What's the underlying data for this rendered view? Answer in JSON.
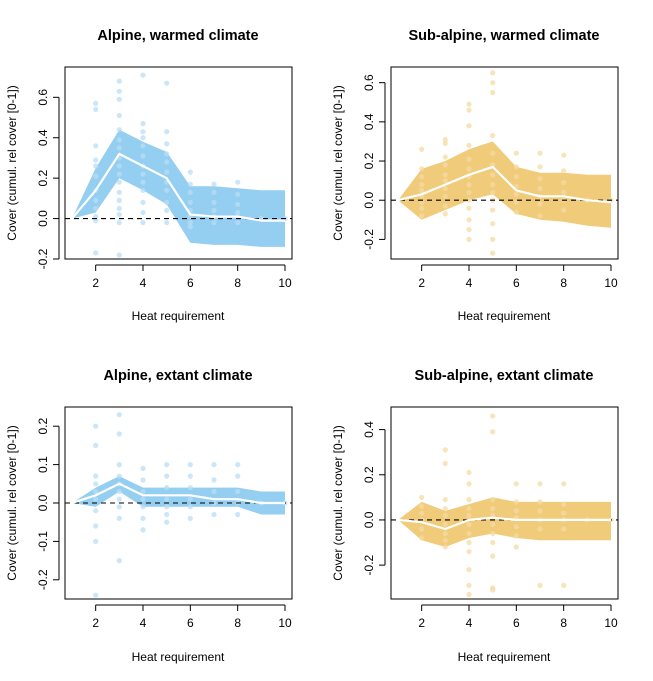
{
  "chart_data": [
    {
      "type": "line",
      "title": "Alpine, warmed climate",
      "xlabel": "Heat requirement",
      "ylabel": "Cover (cumul. rel cover [0-1])",
      "xlim": [
        1,
        10
      ],
      "ylim": [
        -0.2,
        0.75
      ],
      "xticks": [
        2,
        4,
        6,
        8,
        10
      ],
      "yticks": [
        -0.2,
        0.0,
        0.2,
        0.4,
        0.6
      ],
      "band_color": "#8ecbef",
      "point_color": "#b9def5",
      "line_color": "#ffffff",
      "reference_line": 0,
      "series": [
        {
          "x": [
            1,
            2,
            3,
            4,
            5,
            6,
            7,
            8,
            9,
            10
          ],
          "mean": [
            0.0,
            0.14,
            0.32,
            0.26,
            0.2,
            0.02,
            0.01,
            0.01,
            -0.01,
            -0.01
          ],
          "lower": [
            0.0,
            0.03,
            0.2,
            0.14,
            0.07,
            -0.12,
            -0.13,
            -0.13,
            -0.14,
            -0.14
          ],
          "upper": [
            0.0,
            0.25,
            0.44,
            0.38,
            0.33,
            0.16,
            0.16,
            0.15,
            0.14,
            0.14
          ]
        }
      ],
      "points": [
        [
          2,
          0.57
        ],
        [
          2,
          0.54
        ],
        [
          2,
          0.36
        ],
        [
          2,
          0.29
        ],
        [
          2,
          0.26
        ],
        [
          2,
          0.21
        ],
        [
          2,
          0.14
        ],
        [
          2,
          0.09
        ],
        [
          2,
          0.05
        ],
        [
          2,
          0.01
        ],
        [
          2,
          -0.01
        ],
        [
          2,
          -0.17
        ],
        [
          3,
          0.68
        ],
        [
          3,
          0.63
        ],
        [
          3,
          0.59
        ],
        [
          3,
          0.51
        ],
        [
          3,
          0.44
        ],
        [
          3,
          0.39
        ],
        [
          3,
          0.35
        ],
        [
          3,
          0.3
        ],
        [
          3,
          0.26
        ],
        [
          3,
          0.22
        ],
        [
          3,
          0.18
        ],
        [
          3,
          0.13
        ],
        [
          3,
          0.09
        ],
        [
          3,
          0.05
        ],
        [
          3,
          0.02
        ],
        [
          3,
          -0.02
        ],
        [
          3,
          -0.18
        ],
        [
          4,
          0.71
        ],
        [
          4,
          0.47
        ],
        [
          4,
          0.43
        ],
        [
          4,
          0.4
        ],
        [
          4,
          0.36
        ],
        [
          4,
          0.31
        ],
        [
          4,
          0.26
        ],
        [
          4,
          0.22
        ],
        [
          4,
          0.18
        ],
        [
          4,
          0.14
        ],
        [
          4,
          0.08
        ],
        [
          4,
          0.03
        ],
        [
          4,
          -0.02
        ],
        [
          5,
          0.67
        ],
        [
          5,
          0.43
        ],
        [
          5,
          0.37
        ],
        [
          5,
          0.32
        ],
        [
          5,
          0.28
        ],
        [
          5,
          0.23
        ],
        [
          5,
          0.18
        ],
        [
          5,
          0.14
        ],
        [
          5,
          0.08
        ],
        [
          5,
          0.04
        ],
        [
          5,
          -0.02
        ],
        [
          6,
          0.23
        ],
        [
          6,
          0.17
        ],
        [
          6,
          0.13
        ],
        [
          6,
          0.08
        ],
        [
          6,
          0.04
        ],
        [
          6,
          0.01
        ],
        [
          6,
          -0.02
        ],
        [
          6,
          -0.04
        ],
        [
          7,
          0.17
        ],
        [
          7,
          0.13
        ],
        [
          7,
          0.08
        ],
        [
          7,
          0.04
        ],
        [
          7,
          0.01
        ],
        [
          7,
          -0.02
        ],
        [
          8,
          0.18
        ],
        [
          8,
          0.12
        ],
        [
          8,
          0.07
        ],
        [
          8,
          0.03
        ],
        [
          8,
          0.01
        ],
        [
          8,
          -0.02
        ],
        [
          9,
          0.0
        ],
        [
          10,
          0.0
        ]
      ]
    },
    {
      "type": "line",
      "title": "Sub-alpine, warmed climate",
      "xlabel": "Heat requirement",
      "ylabel": "Cover (cumul. rel cover [0-1])",
      "xlim": [
        1,
        10
      ],
      "ylim": [
        -0.3,
        0.68
      ],
      "xticks": [
        2,
        4,
        6,
        8,
        10
      ],
      "yticks": [
        -0.2,
        0.0,
        0.2,
        0.4,
        0.6
      ],
      "band_color": "#efc873",
      "point_color": "#f5dba3",
      "line_color": "#ffffff",
      "reference_line": 0,
      "series": [
        {
          "x": [
            1,
            2,
            3,
            4,
            5,
            6,
            7,
            8,
            9,
            10
          ],
          "mean": [
            0.0,
            0.03,
            0.08,
            0.13,
            0.17,
            0.05,
            0.02,
            0.02,
            0.0,
            -0.01
          ],
          "lower": [
            0.0,
            -0.1,
            -0.05,
            0.0,
            0.03,
            -0.07,
            -0.1,
            -0.11,
            -0.13,
            -0.14
          ],
          "upper": [
            0.0,
            0.16,
            0.2,
            0.26,
            0.3,
            0.17,
            0.14,
            0.14,
            0.13,
            0.13
          ]
        }
      ],
      "points": [
        [
          2,
          0.26
        ],
        [
          2,
          0.16
        ],
        [
          2,
          0.12
        ],
        [
          2,
          0.08
        ],
        [
          2,
          0.05
        ],
        [
          2,
          0.02
        ],
        [
          2,
          -0.01
        ],
        [
          2,
          -0.04
        ],
        [
          2,
          -0.08
        ],
        [
          3,
          0.31
        ],
        [
          3,
          0.29
        ],
        [
          3,
          0.22
        ],
        [
          3,
          0.18
        ],
        [
          3,
          0.13
        ],
        [
          3,
          0.1
        ],
        [
          3,
          0.06
        ],
        [
          3,
          0.02
        ],
        [
          3,
          -0.03
        ],
        [
          3,
          -0.07
        ],
        [
          4,
          0.49
        ],
        [
          4,
          0.46
        ],
        [
          4,
          0.38
        ],
        [
          4,
          0.28
        ],
        [
          4,
          0.21
        ],
        [
          4,
          0.16
        ],
        [
          4,
          0.12
        ],
        [
          4,
          0.08
        ],
        [
          4,
          0.04
        ],
        [
          4,
          0.0
        ],
        [
          4,
          -0.04
        ],
        [
          4,
          -0.1
        ],
        [
          4,
          -0.15
        ],
        [
          4,
          -0.2
        ],
        [
          5,
          0.65
        ],
        [
          5,
          0.6
        ],
        [
          5,
          0.55
        ],
        [
          5,
          0.33
        ],
        [
          5,
          0.24
        ],
        [
          5,
          0.18
        ],
        [
          5,
          0.13
        ],
        [
          5,
          0.08
        ],
        [
          5,
          0.04
        ],
        [
          5,
          0.0
        ],
        [
          5,
          -0.05
        ],
        [
          5,
          -0.12
        ],
        [
          5,
          -0.2
        ],
        [
          5,
          -0.27
        ],
        [
          6,
          0.24
        ],
        [
          6,
          0.17
        ],
        [
          6,
          0.12
        ],
        [
          6,
          0.07
        ],
        [
          6,
          0.03
        ],
        [
          6,
          -0.01
        ],
        [
          6,
          -0.06
        ],
        [
          7,
          0.24
        ],
        [
          7,
          0.17
        ],
        [
          7,
          0.11
        ],
        [
          7,
          0.06
        ],
        [
          7,
          0.02
        ],
        [
          7,
          -0.02
        ],
        [
          7,
          -0.08
        ],
        [
          8,
          0.23
        ],
        [
          8,
          0.15
        ],
        [
          8,
          0.09
        ],
        [
          8,
          0.04
        ],
        [
          8,
          0.0
        ],
        [
          8,
          -0.05
        ],
        [
          9,
          0.0
        ],
        [
          10,
          0.0
        ]
      ]
    },
    {
      "type": "line",
      "title": "Alpine, extant climate",
      "xlabel": "Heat requirement",
      "ylabel": "Cover (cumul. rel cover [0-1])",
      "xlim": [
        1,
        10
      ],
      "ylim": [
        -0.25,
        0.25
      ],
      "xticks": [
        2,
        4,
        6,
        8,
        10
      ],
      "yticks": [
        -0.2,
        -0.1,
        0.0,
        0.1,
        0.2
      ],
      "band_color": "#8ecbef",
      "point_color": "#b9def5",
      "line_color": "#ffffff",
      "reference_line": 0,
      "series": [
        {
          "x": [
            1,
            2,
            3,
            4,
            5,
            6,
            7,
            8,
            9,
            10
          ],
          "mean": [
            0.0,
            0.02,
            0.05,
            0.02,
            0.02,
            0.02,
            0.01,
            0.01,
            0.0,
            0.0
          ],
          "lower": [
            0.0,
            -0.01,
            0.03,
            -0.01,
            -0.01,
            -0.01,
            -0.01,
            -0.01,
            -0.03,
            -0.03
          ],
          "upper": [
            0.0,
            0.04,
            0.07,
            0.04,
            0.04,
            0.04,
            0.04,
            0.04,
            0.03,
            0.03
          ]
        }
      ],
      "points": [
        [
          2,
          0.2
        ],
        [
          2,
          0.15
        ],
        [
          2,
          0.07
        ],
        [
          2,
          0.05
        ],
        [
          2,
          0.03
        ],
        [
          2,
          0.01
        ],
        [
          2,
          -0.02
        ],
        [
          2,
          -0.06
        ],
        [
          2,
          -0.1
        ],
        [
          2,
          -0.24
        ],
        [
          3,
          0.23
        ],
        [
          3,
          0.18
        ],
        [
          3,
          0.1
        ],
        [
          3,
          0.07
        ],
        [
          3,
          0.05
        ],
        [
          3,
          0.03
        ],
        [
          3,
          0.01
        ],
        [
          3,
          -0.01
        ],
        [
          3,
          -0.04
        ],
        [
          3,
          -0.15
        ],
        [
          4,
          0.09
        ],
        [
          4,
          0.06
        ],
        [
          4,
          0.03
        ],
        [
          4,
          0.01
        ],
        [
          4,
          -0.01
        ],
        [
          4,
          -0.04
        ],
        [
          4,
          -0.07
        ],
        [
          5,
          0.1
        ],
        [
          5,
          0.07
        ],
        [
          5,
          0.04
        ],
        [
          5,
          0.01
        ],
        [
          5,
          -0.01
        ],
        [
          5,
          -0.03
        ],
        [
          5,
          -0.05
        ],
        [
          6,
          0.1
        ],
        [
          6,
          0.07
        ],
        [
          6,
          0.04
        ],
        [
          6,
          0.01
        ],
        [
          6,
          -0.01
        ],
        [
          6,
          -0.04
        ],
        [
          7,
          0.1
        ],
        [
          7,
          0.06
        ],
        [
          7,
          0.03
        ],
        [
          7,
          0.0
        ],
        [
          7,
          -0.03
        ],
        [
          8,
          0.1
        ],
        [
          8,
          0.07
        ],
        [
          8,
          0.03
        ],
        [
          8,
          0.0
        ],
        [
          8,
          -0.03
        ],
        [
          9,
          0.0
        ],
        [
          10,
          0.0
        ]
      ]
    },
    {
      "type": "line",
      "title": "Sub-alpine, extant climate",
      "xlabel": "Heat requirement",
      "ylabel": "Cover (cumul. rel cover [0-1])",
      "xlim": [
        1,
        10
      ],
      "ylim": [
        -0.35,
        0.5
      ],
      "xticks": [
        2,
        4,
        6,
        8,
        10
      ],
      "yticks": [
        -0.2,
        0.0,
        0.2,
        0.4
      ],
      "band_color": "#efc873",
      "point_color": "#f5dba3",
      "line_color": "#ffffff",
      "reference_line": 0,
      "series": [
        {
          "x": [
            1,
            2,
            3,
            4,
            5,
            6,
            7,
            8,
            9,
            10
          ],
          "mean": [
            0.0,
            -0.01,
            -0.04,
            0.0,
            0.01,
            0.0,
            0.0,
            0.0,
            0.0,
            0.0
          ],
          "lower": [
            0.0,
            -0.09,
            -0.12,
            -0.08,
            -0.06,
            -0.08,
            -0.09,
            -0.09,
            -0.09,
            -0.09
          ],
          "upper": [
            0.0,
            0.08,
            0.04,
            0.07,
            0.1,
            0.08,
            0.08,
            0.08,
            0.08,
            0.08
          ]
        }
      ],
      "points": [
        [
          2,
          0.1
        ],
        [
          2,
          0.06
        ],
        [
          2,
          0.03
        ],
        [
          2,
          0.0
        ],
        [
          2,
          -0.04
        ],
        [
          2,
          -0.08
        ],
        [
          3,
          0.31
        ],
        [
          3,
          0.25
        ],
        [
          3,
          0.09
        ],
        [
          3,
          0.05
        ],
        [
          3,
          0.02
        ],
        [
          3,
          -0.02
        ],
        [
          3,
          -0.06
        ],
        [
          3,
          -0.09
        ],
        [
          3,
          -0.12
        ],
        [
          4,
          0.21
        ],
        [
          4,
          0.16
        ],
        [
          4,
          0.09
        ],
        [
          4,
          0.05
        ],
        [
          4,
          0.02
        ],
        [
          4,
          -0.02
        ],
        [
          4,
          -0.06
        ],
        [
          4,
          -0.1
        ],
        [
          4,
          -0.14
        ],
        [
          4,
          -0.22
        ],
        [
          4,
          -0.29
        ],
        [
          4,
          -0.33
        ],
        [
          5,
          0.46
        ],
        [
          5,
          0.39
        ],
        [
          5,
          0.09
        ],
        [
          5,
          0.05
        ],
        [
          5,
          0.02
        ],
        [
          5,
          -0.02
        ],
        [
          5,
          -0.06
        ],
        [
          5,
          -0.1
        ],
        [
          5,
          -0.16
        ],
        [
          5,
          -0.3
        ],
        [
          5,
          -0.31
        ],
        [
          6,
          0.16
        ],
        [
          6,
          0.08
        ],
        [
          6,
          0.04
        ],
        [
          6,
          0.01
        ],
        [
          6,
          -0.03
        ],
        [
          6,
          -0.07
        ],
        [
          6,
          -0.12
        ],
        [
          7,
          0.16
        ],
        [
          7,
          0.08
        ],
        [
          7,
          0.04
        ],
        [
          7,
          0.0
        ],
        [
          7,
          -0.04
        ],
        [
          7,
          -0.29
        ],
        [
          8,
          0.16
        ],
        [
          8,
          0.07
        ],
        [
          8,
          0.03
        ],
        [
          8,
          0.0
        ],
        [
          8,
          -0.04
        ],
        [
          8,
          -0.29
        ],
        [
          9,
          0.0
        ],
        [
          10,
          0.0
        ]
      ]
    }
  ]
}
